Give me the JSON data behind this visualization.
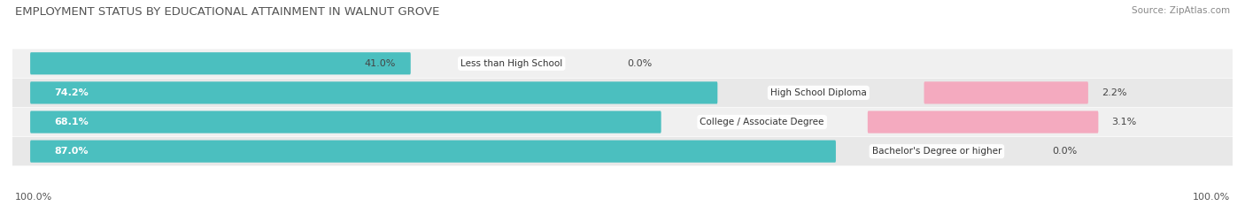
{
  "title": "EMPLOYMENT STATUS BY EDUCATIONAL ATTAINMENT IN WALNUT GROVE",
  "source": "Source: ZipAtlas.com",
  "categories": [
    "Less than High School",
    "High School Diploma",
    "College / Associate Degree",
    "Bachelor's Degree or higher"
  ],
  "labor_force": [
    41.0,
    74.2,
    68.1,
    87.0
  ],
  "unemployed": [
    0.0,
    2.2,
    3.1,
    0.0
  ],
  "labor_force_color": "#4BBFBF",
  "unemployed_color": "#F07090",
  "unemployed_light_color": "#F4AABF",
  "row_bg_colors": [
    "#F0F0F0",
    "#E8E8E8",
    "#F0F0F0",
    "#E8E8E8"
  ],
  "left_axis_label": "100.0%",
  "right_axis_label": "100.0%",
  "title_fontsize": 9.5,
  "source_fontsize": 7.5,
  "bar_label_fontsize": 8,
  "cat_label_fontsize": 7.5,
  "legend_fontsize": 8,
  "axis_label_fontsize": 8
}
